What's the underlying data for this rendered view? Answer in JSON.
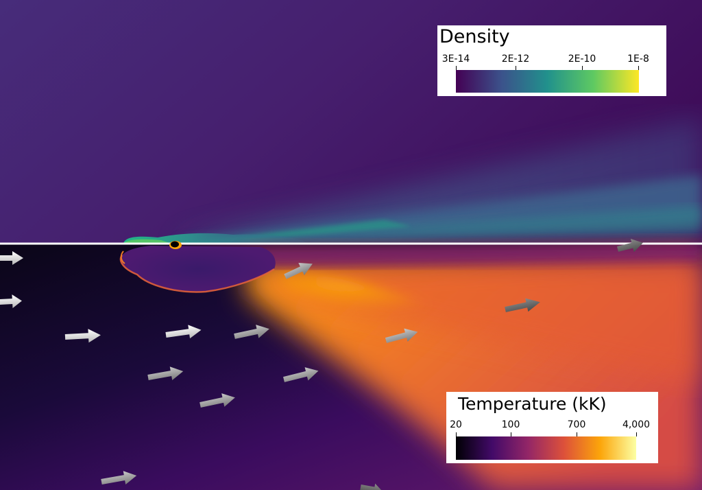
{
  "density_colorbar": {
    "title": "Density",
    "ticks": [
      "3E-14",
      "2E-12",
      "2E-10",
      "1E-8"
    ],
    "colors": [
      "#440154",
      "#3b528b",
      "#21918c",
      "#5ec962",
      "#fde725"
    ]
  },
  "temperature_colorbar": {
    "title": "Temperature (kK)",
    "ticks": [
      "20",
      "100",
      "700",
      "4,000"
    ],
    "colors": [
      "#000004",
      "#420a68",
      "#932667",
      "#dd513a",
      "#fca50a",
      "#fcffa4"
    ]
  },
  "panels": {
    "top": "density",
    "bottom": "temperature"
  }
}
